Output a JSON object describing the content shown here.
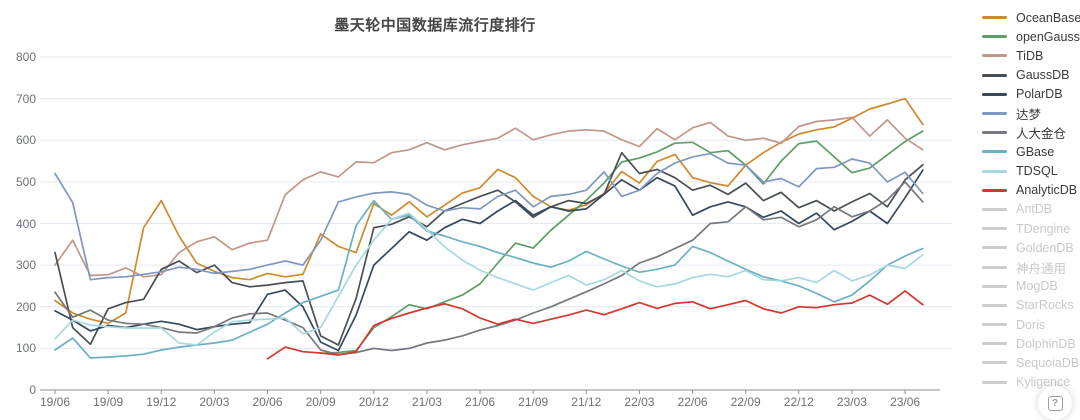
{
  "ui": {
    "help_glyph": "?"
  },
  "chart_data": {
    "type": "line",
    "title": "墨天轮中国数据库流行度排行",
    "legend_position": "right",
    "grid": true,
    "ylim": [
      0,
      800
    ],
    "y_ticks": [
      0,
      100,
      200,
      300,
      400,
      500,
      600,
      700,
      800
    ],
    "x_axis_label_every": 3,
    "x": [
      "19/06",
      "19/07",
      "19/08",
      "19/09",
      "19/10",
      "19/11",
      "19/12",
      "20/01",
      "20/02",
      "20/03",
      "20/04",
      "20/05",
      "20/06",
      "20/07",
      "20/08",
      "20/09",
      "20/10",
      "20/11",
      "20/12",
      "21/01",
      "21/02",
      "21/03",
      "21/04",
      "21/05",
      "21/06",
      "21/07",
      "21/08",
      "21/09",
      "21/10",
      "21/11",
      "21/12",
      "22/01",
      "22/02",
      "22/03",
      "22/04",
      "22/05",
      "22/06",
      "22/07",
      "22/08",
      "22/09",
      "22/10",
      "22/11",
      "22/12",
      "23/01",
      "23/02",
      "23/03",
      "23/04",
      "23/05",
      "23/06",
      "23/07"
    ],
    "x_tick_labels_shown": [
      "19/06",
      "19/09",
      "19/12",
      "20/03",
      "20/06",
      "20/09",
      "20/12",
      "21/03",
      "21/06",
      "21/09",
      "21/12",
      "22/03",
      "22/06",
      "22/09",
      "22/12",
      "23/03",
      "23/06"
    ],
    "disabled_color": "#cdcdcd",
    "series": [
      {
        "name": "OceanBase",
        "color": "#d08a2c",
        "enabled": true,
        "values": [
          215,
          185,
          170,
          160,
          185,
          390,
          455,
          370,
          305,
          285,
          270,
          265,
          280,
          272,
          278,
          375,
          345,
          330,
          448,
          420,
          452,
          416,
          444,
          473,
          486,
          530,
          510,
          465,
          440,
          432,
          445,
          472,
          525,
          497,
          549,
          566,
          510,
          498,
          490,
          540,
          570,
          595,
          615,
          625,
          632,
          653,
          675,
          687,
          700,
          638
        ]
      },
      {
        "name": "openGauss",
        "color": "#5f9d66",
        "enabled": true,
        "values": [
          null,
          null,
          null,
          null,
          null,
          null,
          null,
          null,
          null,
          null,
          null,
          null,
          null,
          null,
          null,
          88,
          90,
          95,
          150,
          176,
          205,
          195,
          212,
          228,
          255,
          305,
          353,
          341,
          384,
          420,
          456,
          497,
          548,
          557,
          572,
          593,
          595,
          570,
          575,
          540,
          495,
          550,
          592,
          598,
          560,
          522,
          533,
          565,
          597,
          622
        ]
      },
      {
        "name": "TiDB",
        "color": "#c0978a",
        "enabled": true,
        "values": [
          300,
          360,
          275,
          277,
          293,
          272,
          277,
          330,
          356,
          368,
          337,
          353,
          360,
          469,
          505,
          524,
          512,
          548,
          546,
          570,
          577,
          594,
          577,
          589,
          597,
          605,
          629,
          601,
          613,
          622,
          625,
          622,
          601,
          585,
          628,
          601,
          630,
          643,
          610,
          600,
          605,
          593,
          633,
          645,
          649,
          655,
          610,
          649,
          605,
          577
        ]
      },
      {
        "name": "GaussDB",
        "color": "#4a4f55",
        "enabled": true,
        "values": [
          330,
          150,
          110,
          195,
          210,
          218,
          290,
          310,
          282,
          300,
          258,
          248,
          252,
          258,
          262,
          130,
          108,
          220,
          390,
          398,
          416,
          392,
          430,
          448,
          465,
          480,
          452,
          415,
          440,
          455,
          448,
          470,
          570,
          520,
          530,
          510,
          480,
          492,
          470,
          497,
          455,
          475,
          438,
          455,
          430,
          452,
          472,
          440,
          505,
          541
        ]
      },
      {
        "name": "PolarDB",
        "color": "#37495c",
        "enabled": true,
        "values": [
          190,
          168,
          142,
          155,
          150,
          158,
          165,
          158,
          145,
          152,
          158,
          162,
          230,
          240,
          200,
          115,
          95,
          180,
          300,
          340,
          380,
          360,
          390,
          410,
          400,
          430,
          455,
          420,
          440,
          430,
          435,
          470,
          505,
          480,
          510,
          490,
          420,
          440,
          452,
          440,
          415,
          430,
          400,
          425,
          385,
          405,
          430,
          400,
          462,
          528
        ]
      },
      {
        "name": "达梦",
        "color": "#7e98c0",
        "enabled": true,
        "values": [
          520,
          450,
          265,
          270,
          272,
          278,
          284,
          295,
          290,
          280,
          285,
          290,
          300,
          310,
          300,
          360,
          452,
          464,
          473,
          476,
          470,
          444,
          430,
          438,
          435,
          465,
          480,
          440,
          465,
          470,
          480,
          524,
          465,
          480,
          520,
          545,
          560,
          568,
          545,
          540,
          500,
          508,
          488,
          532,
          535,
          555,
          545,
          500,
          523,
          472
        ]
      },
      {
        "name": "人大金仓",
        "color": "#75787e",
        "enabled": true,
        "values": [
          235,
          175,
          192,
          168,
          160,
          158,
          150,
          139,
          137,
          152,
          173,
          183,
          185,
          168,
          150,
          96,
          85,
          90,
          100,
          95,
          100,
          113,
          120,
          130,
          144,
          155,
          168,
          185,
          200,
          218,
          236,
          255,
          275,
          305,
          320,
          340,
          360,
          400,
          404,
          440,
          409,
          415,
          392,
          409,
          440,
          416,
          430,
          457,
          500,
          452
        ]
      },
      {
        "name": "GBase",
        "color": "#6cb1c2",
        "enabled": true,
        "values": [
          96,
          125,
          77,
          79,
          82,
          86,
          96,
          103,
          108,
          113,
          120,
          139,
          158,
          185,
          210,
          225,
          240,
          395,
          455,
          410,
          420,
          382,
          370,
          356,
          345,
          330,
          318,
          305,
          295,
          310,
          333,
          315,
          298,
          283,
          290,
          300,
          345,
          330,
          310,
          290,
          272,
          262,
          250,
          232,
          212,
          228,
          262,
          300,
          322,
          340
        ]
      },
      {
        "name": "TDSQL",
        "color": "#a6d9dd",
        "enabled": true,
        "values": [
          123,
          168,
          156,
          152,
          149,
          149,
          149,
          113,
          108,
          139,
          164,
          168,
          170,
          173,
          135,
          150,
          225,
          300,
          360,
          410,
          425,
          385,
          344,
          312,
          288,
          270,
          255,
          240,
          258,
          275,
          252,
          265,
          287,
          262,
          248,
          255,
          270,
          278,
          272,
          287,
          265,
          262,
          270,
          258,
          287,
          262,
          276,
          300,
          292,
          325
        ]
      },
      {
        "name": "AnalyticDB",
        "color": "#d23830",
        "enabled": true,
        "values": [
          null,
          null,
          null,
          null,
          null,
          null,
          null,
          null,
          null,
          null,
          null,
          null,
          75,
          103,
          92,
          89,
          84,
          92,
          155,
          172,
          185,
          197,
          207,
          195,
          173,
          158,
          170,
          160,
          170,
          180,
          192,
          181,
          195,
          210,
          196,
          208,
          212,
          195,
          205,
          215,
          195,
          185,
          200,
          198,
          205,
          209,
          228,
          206,
          238,
          205
        ]
      },
      {
        "name": "AntDB",
        "enabled": false
      },
      {
        "name": "TDengine",
        "enabled": false
      },
      {
        "name": "GoldenDB",
        "enabled": false
      },
      {
        "name": "神舟通用",
        "enabled": false
      },
      {
        "name": "MogDB",
        "enabled": false
      },
      {
        "name": "StarRocks",
        "enabled": false
      },
      {
        "name": "Doris",
        "enabled": false
      },
      {
        "name": "DolphinDB",
        "enabled": false
      },
      {
        "name": "SequoiaDB",
        "enabled": false
      },
      {
        "name": "Kyligence",
        "enabled": false
      }
    ]
  },
  "layout_colors": {
    "grid_line": "#e4eaf2",
    "axis_line": "#8b9196",
    "axis_label": "#6E7079"
  }
}
